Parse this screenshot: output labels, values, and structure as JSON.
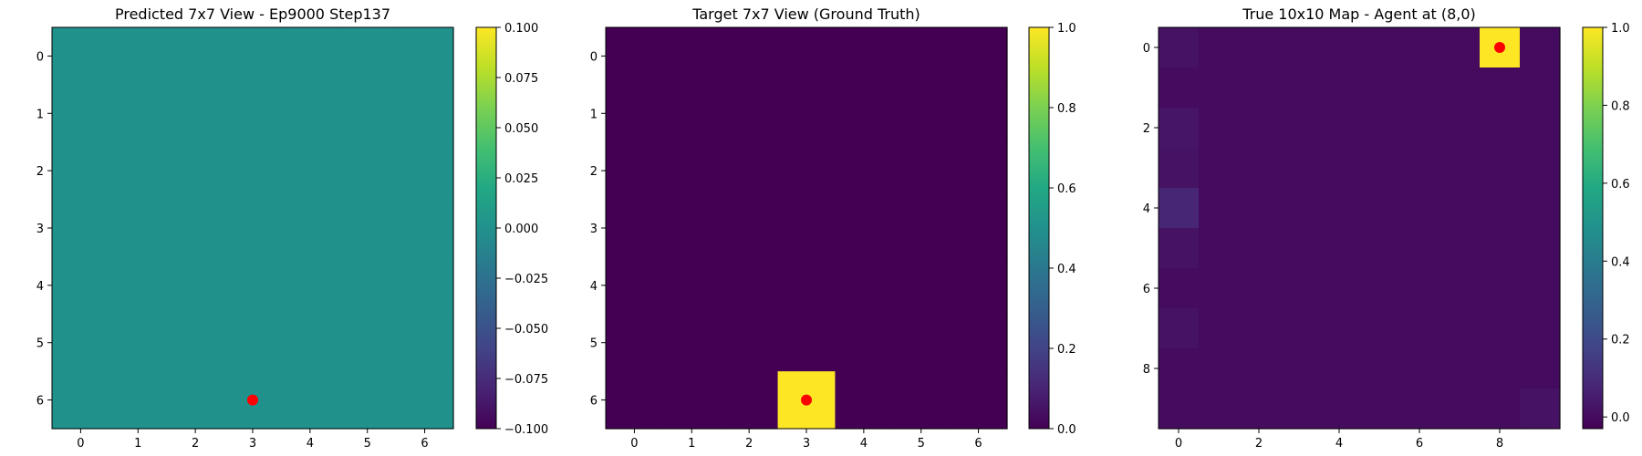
{
  "chart_data": [
    {
      "type": "heatmap",
      "title": "Predicted 7x7 View - Ep9000 Step137",
      "rows": 7,
      "cols": 7,
      "x_ticks": [
        0,
        1,
        2,
        3,
        4,
        5,
        6
      ],
      "y_ticks": [
        0,
        1,
        2,
        3,
        4,
        5,
        6
      ],
      "values": [
        [
          0,
          0,
          0,
          0,
          0,
          0,
          0
        ],
        [
          0,
          0,
          0,
          0,
          0,
          0,
          0
        ],
        [
          0,
          0,
          0,
          0,
          0,
          0,
          0
        ],
        [
          0,
          0,
          0,
          0,
          0,
          0,
          0
        ],
        [
          0,
          0,
          0,
          0,
          0,
          0,
          0
        ],
        [
          0,
          0,
          0,
          0,
          0,
          0,
          0
        ],
        [
          0,
          0,
          0,
          0,
          0,
          0,
          0
        ]
      ],
      "color_range": [
        -0.1,
        0.1
      ],
      "colorbar_ticks": [
        "0.100",
        "0.075",
        "0.050",
        "0.025",
        "0.000",
        "−0.025",
        "−0.050",
        "−0.075",
        "−0.100"
      ],
      "colorbar_tick_values": [
        0.1,
        0.075,
        0.05,
        0.025,
        0.0,
        -0.025,
        -0.05,
        -0.075,
        -0.1
      ],
      "colormap": "viridis",
      "marker": {
        "x": 3,
        "y": 6,
        "color": "#ff0000"
      }
    },
    {
      "type": "heatmap",
      "title": "Target 7x7 View (Ground Truth)",
      "rows": 7,
      "cols": 7,
      "x_ticks": [
        0,
        1,
        2,
        3,
        4,
        5,
        6
      ],
      "y_ticks": [
        0,
        1,
        2,
        3,
        4,
        5,
        6
      ],
      "values": [
        [
          0,
          0,
          0,
          0,
          0,
          0,
          0
        ],
        [
          0,
          0,
          0,
          0,
          0,
          0,
          0
        ],
        [
          0,
          0,
          0,
          0,
          0,
          0,
          0
        ],
        [
          0,
          0,
          0,
          0,
          0,
          0,
          0
        ],
        [
          0,
          0,
          0,
          0,
          0,
          0,
          0
        ],
        [
          0,
          0,
          0,
          0,
          0,
          0,
          0
        ],
        [
          0,
          0,
          0,
          1,
          0,
          0,
          0
        ]
      ],
      "color_range": [
        0,
        1
      ],
      "colorbar_ticks": [
        "1.0",
        "0.8",
        "0.6",
        "0.4",
        "0.2",
        "0.0"
      ],
      "colorbar_tick_values": [
        1.0,
        0.8,
        0.6,
        0.4,
        0.2,
        0.0
      ],
      "colormap": "viridis",
      "marker": {
        "x": 3,
        "y": 6,
        "color": "#ff0000"
      }
    },
    {
      "type": "heatmap",
      "title": "True 10x10 Map - Agent at (8,0)",
      "rows": 10,
      "cols": 10,
      "x_ticks": [
        0,
        2,
        4,
        6,
        8
      ],
      "y_ticks": [
        0,
        2,
        4,
        6,
        8
      ],
      "values": [
        [
          0.02,
          0,
          0,
          0,
          0,
          0,
          0,
          0,
          1,
          0
        ],
        [
          0,
          0,
          0,
          0,
          0,
          0,
          0,
          0,
          0,
          0
        ],
        [
          0.03,
          0,
          0,
          0,
          0,
          0,
          0,
          0,
          0,
          0
        ],
        [
          0.02,
          0,
          0,
          0,
          0,
          0,
          0,
          0,
          0,
          0
        ],
        [
          0.08,
          0,
          0,
          0,
          0,
          0,
          0,
          0,
          0,
          0
        ],
        [
          0.02,
          0,
          0,
          0,
          0,
          0,
          0,
          0,
          0,
          0
        ],
        [
          0,
          0,
          0,
          0,
          0,
          0,
          0,
          0,
          0,
          0
        ],
        [
          0.02,
          0,
          0,
          0,
          0,
          0,
          0,
          0,
          0,
          0
        ],
        [
          0,
          0,
          0,
          0,
          0,
          0,
          0,
          0,
          0,
          0
        ],
        [
          0,
          0,
          0,
          0,
          0,
          0,
          0,
          0,
          0,
          0.02
        ]
      ],
      "color_range": [
        -0.03,
        1.0
      ],
      "colorbar_ticks": [
        "1.0",
        "0.8",
        "0.6",
        "0.4",
        "0.2",
        "0.0"
      ],
      "colorbar_tick_values": [
        1.0,
        0.8,
        0.6,
        0.4,
        0.2,
        0.0
      ],
      "colormap": "viridis",
      "marker": {
        "x": 8,
        "y": 0,
        "color": "#ff0000"
      }
    }
  ]
}
